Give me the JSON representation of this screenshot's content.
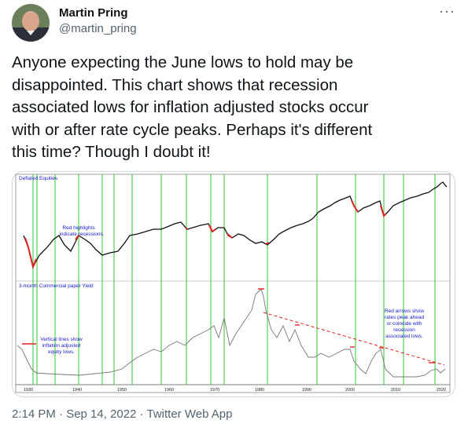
{
  "header": {
    "name": "Martin Pring",
    "handle": "@martin_pring",
    "more": "···"
  },
  "tweet_lines": [
    "Anyone expecting the June lows to hold may be",
    "disappointed. This chart shows that recession",
    "associated lows for inflation adjusted stocks occur",
    "with or after rate cycle peaks. Perhaps it's different",
    "this time? Though I doubt it!"
  ],
  "image": {
    "top_title": "Deflated Equities",
    "top_note": [
      "Red highlights",
      "indicate recessions."
    ],
    "bottom_title": "3-month Commercial paper Yield",
    "left_note": [
      "Vertical lines show",
      "inflation adjusted",
      "equity lows."
    ],
    "right_note": [
      "Red arrows show",
      "rates peak ahead",
      "or coincide with",
      "recession",
      "associated lows."
    ],
    "x_labels": [
      "1930",
      "1940",
      "1950",
      "1960",
      "1970",
      "1980",
      "1990",
      "2000",
      "2010",
      "2020"
    ]
  },
  "footer": "2:14 PM · Sep 14, 2022 · Twitter Web App"
}
